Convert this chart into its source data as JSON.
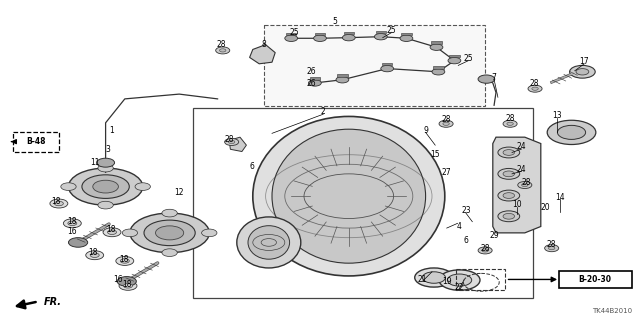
{
  "background_color": "#ffffff",
  "watermark": "TK44B2010",
  "ref_bottom_right": "B-20-30",
  "ref_left": "B-48",
  "direction_label": "FR."
}
